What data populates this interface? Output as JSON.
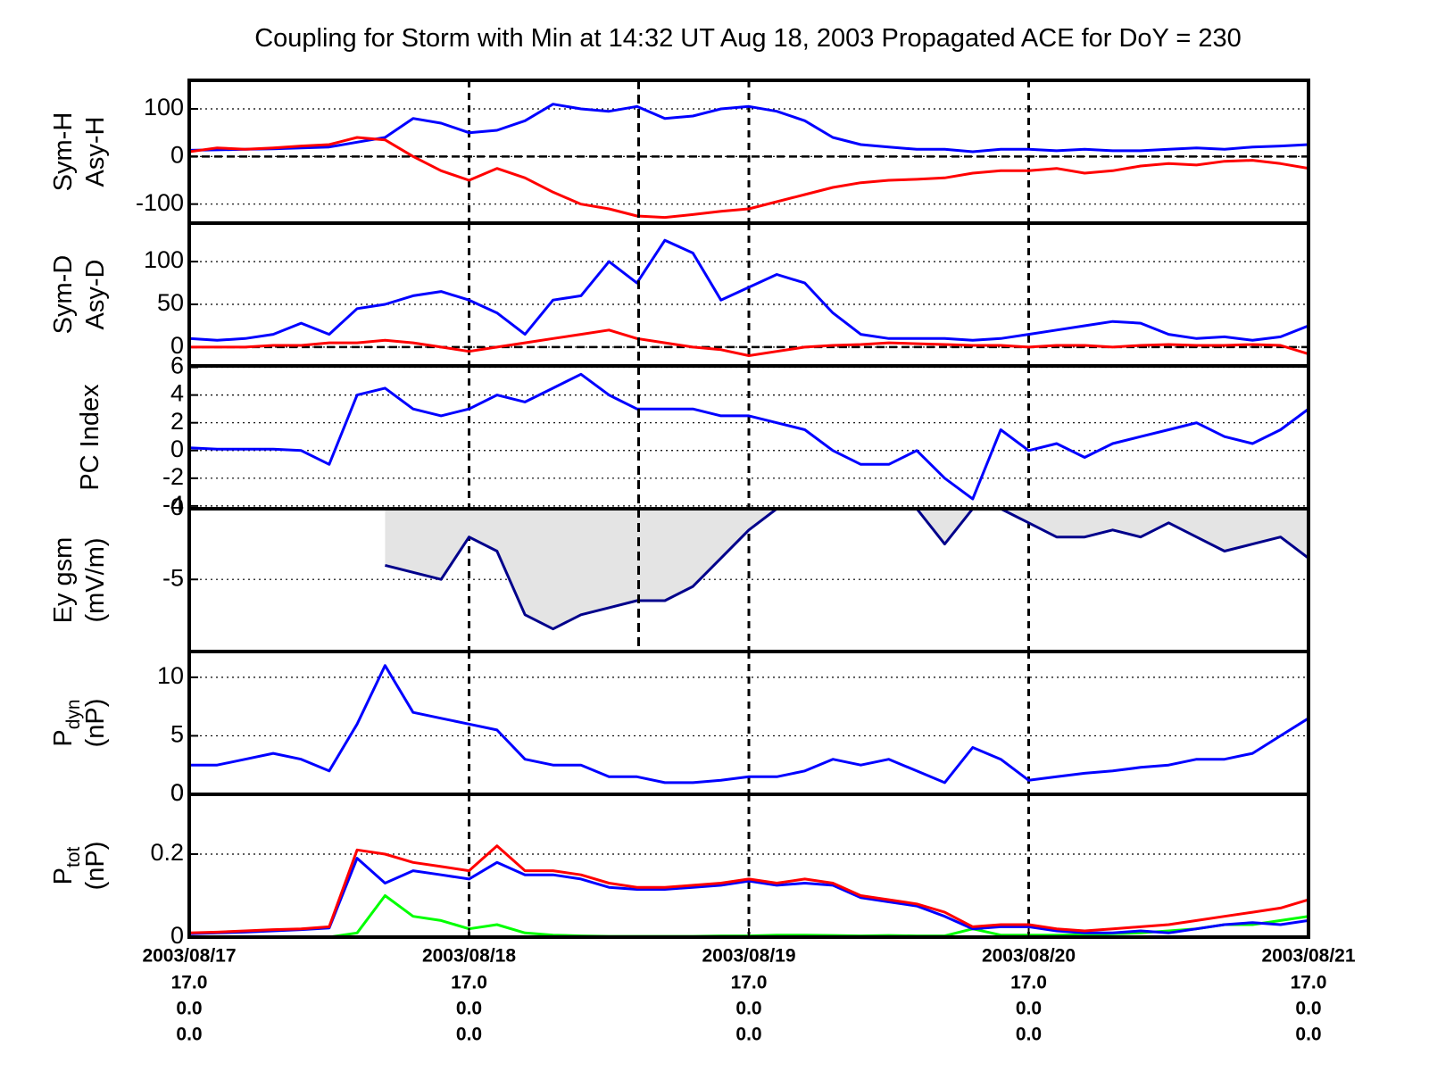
{
  "chart_data": [
    {
      "type": "line",
      "title": "Coupling for Storm with Min at 14:32 UT Aug 18, 2003  Propagated ACE for DoY = 230",
      "ylabel_lines": [
        "Sym-H",
        "Asy-H"
      ],
      "ylim": [
        -140,
        160
      ],
      "yticks": [
        -100,
        0,
        100
      ],
      "zero_line": true,
      "vline": 230.606,
      "xlim": [
        229,
        233
      ],
      "xticks": [
        229,
        230,
        231,
        232,
        233
      ],
      "x": [
        229,
        229.1,
        229.2,
        229.3,
        229.4,
        229.5,
        229.6,
        229.7,
        229.8,
        229.9,
        230,
        230.1,
        230.2,
        230.3,
        230.4,
        230.5,
        230.6,
        230.7,
        230.8,
        230.9,
        231,
        231.1,
        231.2,
        231.3,
        231.4,
        231.5,
        231.6,
        231.7,
        231.8,
        231.9,
        232,
        232.1,
        232.2,
        232.3,
        232.4,
        232.5,
        232.6,
        232.7,
        232.8,
        232.9,
        233
      ],
      "series": [
        {
          "color": "#0000ff",
          "values": [
            13,
            14,
            15,
            16,
            18,
            20,
            30,
            40,
            80,
            70,
            50,
            55,
            75,
            110,
            100,
            95,
            105,
            80,
            85,
            100,
            105,
            95,
            75,
            40,
            25,
            20,
            15,
            15,
            10,
            15,
            15,
            12,
            15,
            12,
            12,
            15,
            18,
            15,
            20,
            22,
            25
          ]
        },
        {
          "color": "#ff0000",
          "values": [
            10,
            18,
            15,
            18,
            22,
            25,
            40,
            35,
            0,
            -30,
            -50,
            -25,
            -45,
            -75,
            -100,
            -110,
            -125,
            -128,
            -122,
            -115,
            -110,
            -95,
            -80,
            -65,
            -55,
            -50,
            -48,
            -45,
            -35,
            -30,
            -30,
            -25,
            -35,
            -30,
            -20,
            -15,
            -18,
            -10,
            -8,
            -15,
            -25
          ]
        }
      ]
    },
    {
      "type": "line",
      "ylabel_lines": [
        "Sym-D",
        "Asy-D"
      ],
      "ylim": [
        -22,
        145
      ],
      "yticks": [
        0,
        50,
        100
      ],
      "zero_line": true,
      "vline": 230.606,
      "xlim": [
        229,
        233
      ],
      "xticks": [
        229,
        230,
        231,
        232,
        233
      ],
      "x": [
        229,
        229.1,
        229.2,
        229.3,
        229.4,
        229.5,
        229.6,
        229.7,
        229.8,
        229.9,
        230,
        230.1,
        230.2,
        230.3,
        230.4,
        230.5,
        230.6,
        230.7,
        230.8,
        230.9,
        231,
        231.1,
        231.2,
        231.3,
        231.4,
        231.5,
        231.6,
        231.7,
        231.8,
        231.9,
        232,
        232.1,
        232.2,
        232.3,
        232.4,
        232.5,
        232.6,
        232.7,
        232.8,
        232.9,
        233
      ],
      "series": [
        {
          "color": "#0000ff",
          "values": [
            10,
            8,
            10,
            15,
            28,
            15,
            45,
            50,
            60,
            65,
            55,
            40,
            15,
            55,
            60,
            100,
            75,
            125,
            110,
            55,
            70,
            85,
            75,
            40,
            15,
            10,
            10,
            10,
            8,
            10,
            15,
            20,
            25,
            30,
            28,
            15,
            10,
            12,
            8,
            12,
            25
          ]
        },
        {
          "color": "#ff0000",
          "values": [
            0,
            0,
            0,
            2,
            2,
            5,
            5,
            8,
            5,
            0,
            -5,
            0,
            5,
            10,
            15,
            20,
            10,
            5,
            0,
            -3,
            -10,
            -5,
            0,
            2,
            3,
            5,
            4,
            3,
            2,
            2,
            0,
            2,
            2,
            0,
            2,
            3,
            2,
            2,
            3,
            2,
            -8
          ]
        }
      ]
    },
    {
      "type": "line",
      "ylabel_lines": [
        "PC Index"
      ],
      "ylim": [
        -4.2,
        6.1
      ],
      "yticks": [
        -4,
        -2,
        0,
        2,
        4,
        6
      ],
      "vline": 230.606,
      "xlim": [
        229,
        233
      ],
      "xticks": [
        229,
        230,
        231,
        232,
        233
      ],
      "x": [
        229,
        229.1,
        229.2,
        229.3,
        229.4,
        229.5,
        229.6,
        229.7,
        229.8,
        229.9,
        230,
        230.1,
        230.2,
        230.3,
        230.4,
        230.5,
        230.6,
        230.7,
        230.8,
        230.9,
        231,
        231.1,
        231.2,
        231.3,
        231.4,
        231.5,
        231.6,
        231.7,
        231.8,
        231.9,
        232,
        232.1,
        232.2,
        232.3,
        232.4,
        232.5,
        232.6,
        232.7,
        232.8,
        232.9,
        233
      ],
      "series": [
        {
          "color": "#0000ff",
          "values": [
            0.2,
            0.1,
            0.1,
            0.1,
            0,
            -1,
            4,
            4.5,
            3,
            2.5,
            3,
            4,
            3.5,
            4.5,
            5.5,
            4,
            3,
            3,
            3,
            2.5,
            2.5,
            2,
            1.5,
            0,
            -1,
            -1,
            0,
            -2,
            -3.5,
            1.5,
            0,
            0.5,
            -0.5,
            0.5,
            1,
            1.5,
            2,
            1,
            0.5,
            1.5,
            3
          ]
        }
      ]
    },
    {
      "type": "line",
      "ylabel_lines": [
        "Ey gsm",
        "(mV/m)"
      ],
      "ylim": [
        -10.1,
        0
      ],
      "yticks": [
        -5,
        0
      ],
      "vline": 230.606,
      "area_fill": "#e4e4e4",
      "xlim": [
        229,
        233
      ],
      "xticks": [
        229,
        230,
        231,
        232,
        233
      ],
      "x": [
        229,
        229.1,
        229.2,
        229.3,
        229.4,
        229.5,
        229.6,
        229.7,
        229.8,
        229.9,
        230,
        230.1,
        230.2,
        230.3,
        230.4,
        230.5,
        230.6,
        230.7,
        230.8,
        230.9,
        231,
        231.1,
        231.2,
        231.3,
        231.4,
        231.5,
        231.6,
        231.7,
        231.8,
        231.9,
        232,
        232.1,
        232.2,
        232.3,
        232.4,
        232.5,
        232.6,
        232.7,
        232.8,
        232.9,
        233
      ],
      "series": [
        {
          "color": "#00008b",
          "values": [
            null,
            null,
            null,
            null,
            null,
            null,
            null,
            -4,
            -4.5,
            -5,
            -2,
            -3,
            -7.5,
            -8.5,
            -7.5,
            -7,
            -6.5,
            -6.5,
            -5.5,
            -3.5,
            -1.5,
            0,
            0,
            0,
            0,
            0,
            0,
            -2.5,
            0,
            0,
            -1,
            -2,
            -2,
            -1.5,
            -2,
            -1,
            -2,
            -3,
            -2.5,
            -2,
            -3.5
          ]
        }
      ]
    },
    {
      "type": "line",
      "ylabel_lines": [
        {
          "text": "P",
          "sub": "dyn"
        },
        "(nP)"
      ],
      "ylim": [
        0,
        12.2
      ],
      "yticks": [
        0,
        5,
        10
      ],
      "xlim": [
        229,
        233
      ],
      "xticks": [
        229,
        230,
        231,
        232,
        233
      ],
      "x": [
        229,
        229.1,
        229.2,
        229.3,
        229.4,
        229.5,
        229.6,
        229.7,
        229.8,
        229.9,
        230,
        230.1,
        230.2,
        230.3,
        230.4,
        230.5,
        230.6,
        230.7,
        230.8,
        230.9,
        231,
        231.1,
        231.2,
        231.3,
        231.4,
        231.5,
        231.6,
        231.7,
        231.8,
        231.9,
        232,
        232.1,
        232.2,
        232.3,
        232.4,
        232.5,
        232.6,
        232.7,
        232.8,
        232.9,
        233
      ],
      "series": [
        {
          "color": "#0000ff",
          "values": [
            2.5,
            2.5,
            3,
            3.5,
            3,
            2,
            6,
            11,
            7,
            6.5,
            6,
            5.5,
            3,
            2.5,
            2.5,
            1.5,
            1.5,
            1,
            1,
            1.2,
            1.5,
            1.5,
            2,
            3,
            2.5,
            3,
            2,
            1,
            4,
            3,
            1.2,
            1.5,
            1.8,
            2,
            2.3,
            2.5,
            3,
            3,
            3.5,
            5,
            6.5
          ]
        }
      ]
    },
    {
      "type": "line",
      "ylabel_lines": [
        {
          "text": "P",
          "sub": "tot"
        },
        "(nP)"
      ],
      "ylim": [
        0,
        0.344
      ],
      "yticks": [
        0,
        0.2,
        {
          "value": 0.344,
          "label": "0"
        }
      ],
      "xlim": [
        229,
        233
      ],
      "xticks": [
        {
          "value": 229,
          "label": "2003/08/17"
        },
        {
          "value": 230,
          "label": "2003/08/18"
        },
        {
          "value": 231,
          "label": "2003/08/19"
        },
        {
          "value": 232,
          "label": "2003/08/20"
        },
        {
          "value": 233,
          "label": "2003/08/21"
        }
      ],
      "xtick_rows": [
        [
          "17.0",
          "17.0",
          "17.0",
          "17.0",
          "17.0"
        ],
        [
          "0.0",
          "0.0",
          "0.0",
          "0.0",
          "0.0"
        ],
        [
          "0.0",
          "0.0",
          "0.0",
          "0.0",
          "0.0"
        ]
      ],
      "x": [
        229,
        229.1,
        229.2,
        229.3,
        229.4,
        229.5,
        229.6,
        229.7,
        229.8,
        229.9,
        230,
        230.1,
        230.2,
        230.3,
        230.4,
        230.5,
        230.6,
        230.7,
        230.8,
        230.9,
        231,
        231.1,
        231.2,
        231.3,
        231.4,
        231.5,
        231.6,
        231.7,
        231.8,
        231.9,
        232,
        232.1,
        232.2,
        232.3,
        232.4,
        232.5,
        232.6,
        232.7,
        232.8,
        232.9,
        233
      ],
      "series": [
        {
          "color": "#00ff00",
          "values": [
            0,
            0,
            0,
            0,
            0,
            0,
            0.01,
            0.1,
            0.05,
            0.04,
            0.02,
            0.03,
            0.01,
            0.005,
            0.003,
            0.002,
            0.002,
            0.002,
            0.002,
            0.003,
            0.003,
            0.005,
            0.005,
            0.004,
            0.003,
            0.004,
            0.003,
            0.003,
            0.02,
            0.005,
            0.005,
            0.005,
            0.006,
            0.008,
            0.01,
            0.015,
            0.02,
            0.03,
            0.03,
            0.04,
            0.05
          ]
        },
        {
          "color": "#0000ff",
          "values": [
            0.008,
            0.01,
            0.012,
            0.015,
            0.018,
            0.022,
            0.19,
            0.13,
            0.16,
            0.15,
            0.14,
            0.18,
            0.15,
            0.15,
            0.14,
            0.12,
            0.115,
            0.115,
            0.12,
            0.125,
            0.135,
            0.125,
            0.13,
            0.125,
            0.095,
            0.085,
            0.075,
            0.05,
            0.02,
            0.025,
            0.025,
            0.015,
            0.01,
            0.01,
            0.015,
            0.01,
            0.02,
            0.03,
            0.035,
            0.03,
            0.04
          ]
        },
        {
          "color": "#ff0000",
          "values": [
            0.01,
            0.012,
            0.015,
            0.018,
            0.02,
            0.025,
            0.21,
            0.2,
            0.18,
            0.17,
            0.16,
            0.22,
            0.16,
            0.16,
            0.15,
            0.13,
            0.12,
            0.12,
            0.125,
            0.13,
            0.14,
            0.13,
            0.14,
            0.13,
            0.1,
            0.09,
            0.08,
            0.06,
            0.025,
            0.03,
            0.03,
            0.02,
            0.015,
            0.02,
            0.025,
            0.03,
            0.04,
            0.05,
            0.06,
            0.07,
            0.09
          ]
        }
      ]
    }
  ]
}
